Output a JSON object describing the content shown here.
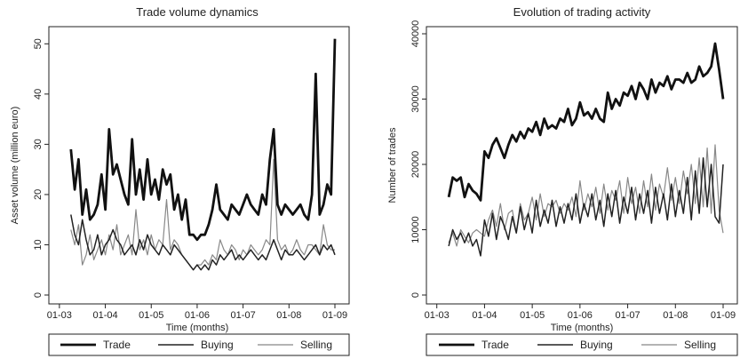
{
  "chart_data": [
    {
      "type": "line",
      "title": "Trade volume dynamics",
      "xlabel": "Time (months)",
      "ylabel": "Asset volume (million euro)",
      "xlim": [
        2003.08,
        2009.0
      ],
      "ylim": [
        0,
        52
      ],
      "y_ticks": [
        0,
        10,
        20,
        30,
        40,
        50
      ],
      "x_ticks": [
        {
          "label": "01-03",
          "value": 2003.0
        },
        {
          "label": "01-04",
          "value": 2004.0
        },
        {
          "label": "01-05",
          "value": 2005.0
        },
        {
          "label": "01-06",
          "value": 2006.0
        },
        {
          "label": "01-07",
          "value": 2007.0
        },
        {
          "label": "01-08",
          "value": 2008.0
        },
        {
          "label": "01-09",
          "value": 2009.0
        }
      ],
      "grid": false,
      "legend": "bottom",
      "legend_entries": [
        "Trade",
        "Buying",
        "Selling"
      ],
      "x": [
        2003.25,
        2003.333,
        2003.417,
        2003.5,
        2003.583,
        2003.667,
        2003.75,
        2003.833,
        2003.917,
        2004.0,
        2004.083,
        2004.167,
        2004.25,
        2004.333,
        2004.417,
        2004.5,
        2004.583,
        2004.667,
        2004.75,
        2004.833,
        2004.917,
        2005.0,
        2005.083,
        2005.167,
        2005.25,
        2005.333,
        2005.417,
        2005.5,
        2005.583,
        2005.667,
        2005.75,
        2005.833,
        2005.917,
        2006.0,
        2006.083,
        2006.167,
        2006.25,
        2006.333,
        2006.417,
        2006.5,
        2006.583,
        2006.667,
        2006.75,
        2006.833,
        2006.917,
        2007.0,
        2007.083,
        2007.167,
        2007.25,
        2007.333,
        2007.417,
        2007.5,
        2007.583,
        2007.667,
        2007.75,
        2007.833,
        2007.917,
        2008.0,
        2008.083,
        2008.167,
        2008.25,
        2008.333,
        2008.417,
        2008.5,
        2008.583,
        2008.667,
        2008.75,
        2008.833,
        2008.917,
        2009.0
      ],
      "series": [
        {
          "name": "Trade",
          "values": [
            29,
            21,
            27,
            16,
            21,
            15,
            16,
            18,
            24,
            17,
            33,
            24,
            26,
            23,
            20,
            18,
            31,
            20,
            25,
            19,
            27,
            20,
            23,
            19,
            25,
            22,
            24,
            17,
            20,
            15,
            19,
            12,
            12,
            11,
            12,
            12,
            14,
            17,
            22,
            17,
            16,
            15,
            18,
            17,
            16,
            18,
            20,
            18,
            17,
            16,
            20,
            18,
            27,
            33,
            18,
            16,
            18,
            17,
            16,
            17,
            18,
            16,
            15,
            20,
            44,
            16,
            18,
            22,
            20,
            51
          ],
          "color": "#111111",
          "width": 2.8
        },
        {
          "name": "Buying",
          "values": [
            16,
            12,
            10,
            15,
            11,
            8,
            9,
            12,
            8,
            10,
            11,
            13,
            11,
            10,
            8,
            9,
            10,
            8,
            11,
            9,
            12,
            10,
            9,
            8,
            10,
            9,
            8,
            10,
            9,
            8,
            7,
            6,
            5,
            6,
            5,
            6,
            5,
            7,
            6,
            8,
            7,
            8,
            9,
            7,
            8,
            7,
            8,
            9,
            8,
            7,
            8,
            7,
            9,
            11,
            9,
            7,
            9,
            8,
            8,
            9,
            8,
            7,
            8,
            9,
            10,
            8,
            10,
            9,
            10,
            8
          ],
          "color": "#222222",
          "width": 1.5
        },
        {
          "name": "Selling",
          "values": [
            13,
            10,
            14,
            6,
            8,
            12,
            7,
            9,
            11,
            8,
            12,
            9,
            14,
            8,
            10,
            12,
            8,
            17,
            9,
            11,
            8,
            12,
            9,
            11,
            10,
            19,
            9,
            11,
            10,
            8,
            7,
            6,
            5,
            6,
            6,
            7,
            6,
            8,
            7,
            11,
            9,
            8,
            10,
            9,
            7,
            9,
            8,
            10,
            9,
            8,
            9,
            11,
            10,
            27,
            11,
            9,
            10,
            8,
            9,
            11,
            9,
            8,
            10,
            10,
            9,
            8,
            14,
            10,
            9,
            9
          ],
          "color": "#888888",
          "width": 1.2
        }
      ]
    },
    {
      "type": "line",
      "title": "Evolution of trading activity",
      "xlabel": "Time (months)",
      "ylabel": "Number of trades",
      "xlim": [
        2003.08,
        2009.0
      ],
      "ylim": [
        0,
        40000
      ],
      "y_ticks": [
        0,
        10000,
        20000,
        30000,
        40000
      ],
      "x_ticks": [
        {
          "label": "01-03",
          "value": 2003.0
        },
        {
          "label": "01-04",
          "value": 2004.0
        },
        {
          "label": "01-05",
          "value": 2005.0
        },
        {
          "label": "01-06",
          "value": 2006.0
        },
        {
          "label": "01-07",
          "value": 2007.0
        },
        {
          "label": "01-08",
          "value": 2008.0
        },
        {
          "label": "01-09",
          "value": 2009.0
        }
      ],
      "grid": false,
      "legend": "bottom",
      "legend_entries": [
        "Trade",
        "Buying",
        "Selling"
      ],
      "x": [
        2003.25,
        2003.333,
        2003.417,
        2003.5,
        2003.583,
        2003.667,
        2003.75,
        2003.833,
        2003.917,
        2004.0,
        2004.083,
        2004.167,
        2004.25,
        2004.333,
        2004.417,
        2004.5,
        2004.583,
        2004.667,
        2004.75,
        2004.833,
        2004.917,
        2005.0,
        2005.083,
        2005.167,
        2005.25,
        2005.333,
        2005.417,
        2005.5,
        2005.583,
        2005.667,
        2005.75,
        2005.833,
        2005.917,
        2006.0,
        2006.083,
        2006.167,
        2006.25,
        2006.333,
        2006.417,
        2006.5,
        2006.583,
        2006.667,
        2006.75,
        2006.833,
        2006.917,
        2007.0,
        2007.083,
        2007.167,
        2007.25,
        2007.333,
        2007.417,
        2007.5,
        2007.583,
        2007.667,
        2007.75,
        2007.833,
        2007.917,
        2008.0,
        2008.083,
        2008.167,
        2008.25,
        2008.333,
        2008.417,
        2008.5,
        2008.583,
        2008.667,
        2008.75,
        2008.833,
        2008.917,
        2009.0
      ],
      "series": [
        {
          "name": "Trade",
          "values": [
            15000,
            18000,
            17500,
            18000,
            15000,
            17000,
            16000,
            15500,
            14500,
            22000,
            21000,
            23000,
            24000,
            22500,
            21000,
            23000,
            24500,
            23500,
            25000,
            24000,
            25500,
            25000,
            26500,
            24500,
            27000,
            25500,
            26000,
            25500,
            27000,
            26500,
            28500,
            26000,
            27000,
            29500,
            27500,
            28000,
            27000,
            28500,
            27000,
            26500,
            31000,
            28500,
            30000,
            29000,
            31000,
            30500,
            32000,
            30000,
            32500,
            31500,
            30000,
            33000,
            31000,
            32500,
            32000,
            33500,
            31500,
            33000,
            33000,
            32500,
            34000,
            32500,
            33000,
            35000,
            33500,
            34000,
            35000,
            38500,
            34500,
            30000
          ],
          "color": "#111111",
          "width": 2.8
        },
        {
          "name": "Buying",
          "values": [
            7500,
            10000,
            8500,
            9500,
            8000,
            9500,
            7500,
            8500,
            6000,
            11500,
            9000,
            12500,
            8500,
            12000,
            10500,
            8500,
            12000,
            9500,
            13500,
            10000,
            12500,
            9500,
            14500,
            10500,
            13000,
            11000,
            14500,
            10500,
            13500,
            11000,
            14000,
            11500,
            15500,
            11000,
            14000,
            12000,
            15500,
            11500,
            14500,
            10500,
            15500,
            12000,
            16000,
            11000,
            15000,
            12500,
            16500,
            11500,
            15500,
            12500,
            16000,
            11000,
            16500,
            12500,
            15500,
            11500,
            17000,
            12000,
            16000,
            12500,
            18000,
            11500,
            19000,
            12500,
            21000,
            13500,
            20000,
            12000,
            11000,
            20000
          ],
          "color": "#222222",
          "width": 1.5
        },
        {
          "name": "Selling",
          "values": [
            8000,
            9500,
            7500,
            10000,
            9000,
            8000,
            9500,
            10000,
            9500,
            9000,
            11500,
            13000,
            10500,
            14000,
            10000,
            12500,
            13000,
            9500,
            14000,
            11500,
            12500,
            15000,
            11500,
            15500,
            12000,
            14000,
            13500,
            14500,
            12500,
            14000,
            13000,
            15000,
            12000,
            17500,
            13000,
            15500,
            13500,
            16500,
            12500,
            17000,
            13000,
            16000,
            14500,
            17500,
            12500,
            18000,
            14000,
            16500,
            12500,
            17500,
            13500,
            18500,
            13000,
            17000,
            15000,
            19500,
            14500,
            18000,
            14000,
            19000,
            15500,
            20000,
            14000,
            21000,
            13500,
            22500,
            12500,
            23000,
            13000,
            9500
          ],
          "color": "#888888",
          "width": 1.2
        }
      ]
    }
  ]
}
